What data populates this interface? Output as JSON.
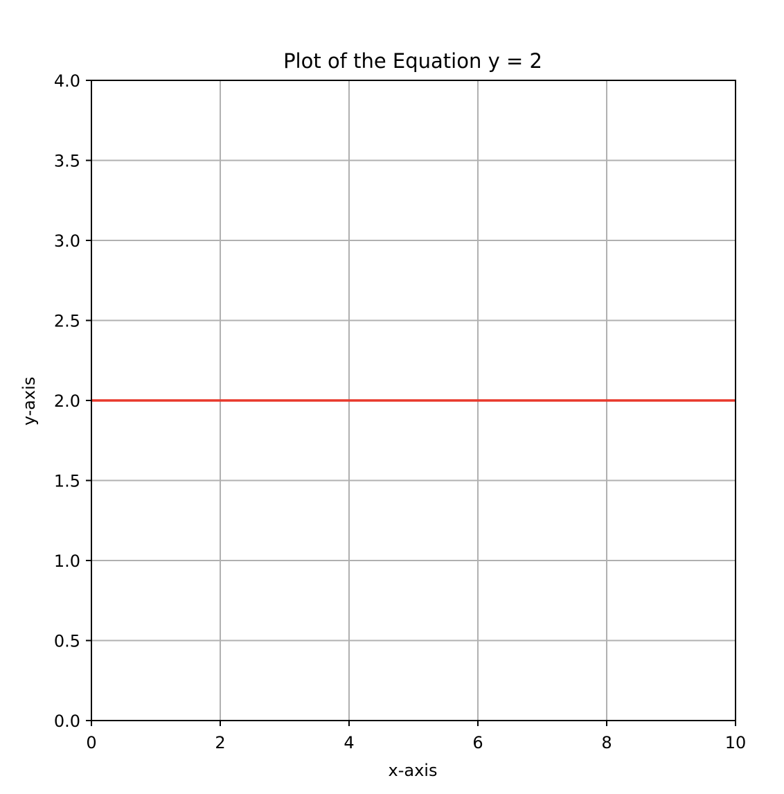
{
  "chart_data": {
    "type": "line",
    "title": "Plot of the Equation y = 2",
    "xlabel": "x-axis",
    "ylabel": "y-axis",
    "xlim": [
      0,
      10
    ],
    "ylim": [
      0,
      4
    ],
    "grid": true,
    "x_ticks": [
      0,
      2,
      4,
      6,
      8,
      10
    ],
    "x_tick_labels": [
      "0",
      "2",
      "4",
      "6",
      "8",
      "10"
    ],
    "y_ticks": [
      0,
      0.5,
      1,
      1.5,
      2,
      2.5,
      3,
      3.5,
      4
    ],
    "y_tick_labels": [
      "0.0",
      "0.5",
      "1.0",
      "1.5",
      "2.0",
      "2.5",
      "3.0",
      "3.5",
      "4.0"
    ],
    "series": [
      {
        "x": [
          0,
          10
        ],
        "y": [
          2,
          2
        ],
        "color": "#e8382c"
      }
    ],
    "grid_color": "#b0b0b0"
  }
}
